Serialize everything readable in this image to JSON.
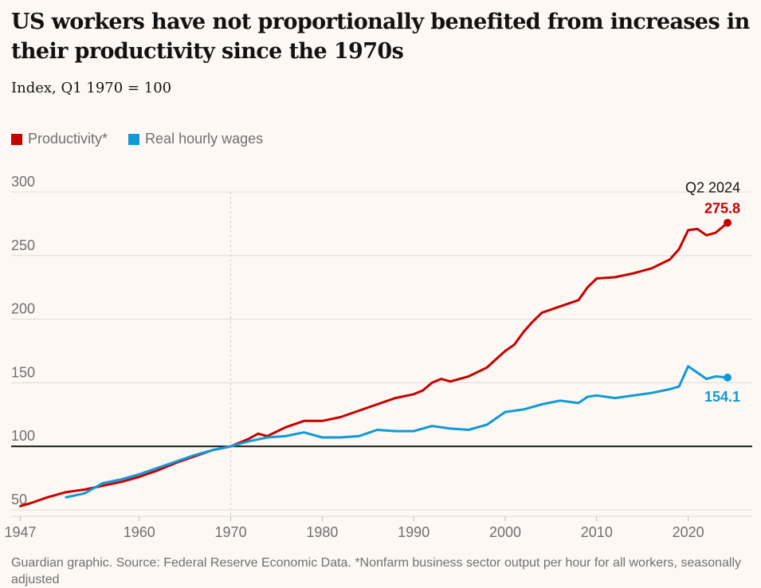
{
  "title": "US workers have not proportionally benefited from increases in their productivity since the 1970s",
  "subtitle": "Index, Q1 1970 = 100",
  "footnote": "Guardian graphic. Source: Federal Reserve Economic Data. *Nonfarm business sector output per hour for all workers, seasonally adjusted",
  "colors": {
    "productivity": "#c70000",
    "wages": "#0f9ad6",
    "baseline": "#121212",
    "grid": "#dcdcdc",
    "background": "#fdf8f3"
  },
  "chart_data": {
    "type": "line",
    "title": "US workers have not proportionally benefited from increases in their productivity since the 1970s",
    "ylabel": "Index, Q1 1970 = 100",
    "xlim": [
      1946,
      2027
    ],
    "ylim": [
      45,
      300
    ],
    "y_ticks": [
      50,
      100,
      150,
      200,
      250,
      300
    ],
    "x_ticks": [
      1947,
      1960,
      1970,
      1980,
      1990,
      2000,
      2010,
      2020
    ],
    "baseline": 100,
    "reference_x": 1970,
    "grid": "horizontal",
    "legend_position": "top-left",
    "series": [
      {
        "name": "Productivity*",
        "color": "#c70000",
        "points": [
          [
            1947,
            53
          ],
          [
            1948,
            55
          ],
          [
            1950,
            60
          ],
          [
            1952,
            64
          ],
          [
            1954,
            66
          ],
          [
            1956,
            69
          ],
          [
            1958,
            72
          ],
          [
            1960,
            76
          ],
          [
            1962,
            81
          ],
          [
            1964,
            87
          ],
          [
            1966,
            92
          ],
          [
            1968,
            97
          ],
          [
            1970,
            100
          ],
          [
            1972,
            106
          ],
          [
            1973,
            110
          ],
          [
            1974,
            108
          ],
          [
            1976,
            115
          ],
          [
            1978,
            120
          ],
          [
            1980,
            120
          ],
          [
            1982,
            123
          ],
          [
            1984,
            128
          ],
          [
            1986,
            133
          ],
          [
            1988,
            138
          ],
          [
            1990,
            141
          ],
          [
            1991,
            144
          ],
          [
            1992,
            150
          ],
          [
            1993,
            153
          ],
          [
            1994,
            151
          ],
          [
            1996,
            155
          ],
          [
            1998,
            162
          ],
          [
            2000,
            175
          ],
          [
            2001,
            180
          ],
          [
            2002,
            190
          ],
          [
            2003,
            198
          ],
          [
            2004,
            205
          ],
          [
            2006,
            210
          ],
          [
            2008,
            215
          ],
          [
            2009,
            225
          ],
          [
            2010,
            232
          ],
          [
            2012,
            233
          ],
          [
            2014,
            236
          ],
          [
            2016,
            240
          ],
          [
            2018,
            247
          ],
          [
            2019,
            255
          ],
          [
            2020,
            270
          ],
          [
            2021,
            271
          ],
          [
            2022,
            266
          ],
          [
            2023,
            268
          ],
          [
            2024.3,
            275.8
          ]
        ]
      },
      {
        "name": "Real hourly wages",
        "color": "#0f9ad6",
        "points": [
          [
            1952,
            60
          ],
          [
            1954,
            63
          ],
          [
            1956,
            71
          ],
          [
            1958,
            74
          ],
          [
            1960,
            78
          ],
          [
            1962,
            83
          ],
          [
            1964,
            88
          ],
          [
            1966,
            93
          ],
          [
            1968,
            97
          ],
          [
            1970,
            100
          ],
          [
            1972,
            104
          ],
          [
            1974,
            107
          ],
          [
            1976,
            108
          ],
          [
            1978,
            111
          ],
          [
            1980,
            107
          ],
          [
            1982,
            107
          ],
          [
            1984,
            108
          ],
          [
            1986,
            113
          ],
          [
            1988,
            112
          ],
          [
            1990,
            112
          ],
          [
            1992,
            116
          ],
          [
            1994,
            114
          ],
          [
            1996,
            113
          ],
          [
            1998,
            117
          ],
          [
            2000,
            127
          ],
          [
            2002,
            129
          ],
          [
            2004,
            133
          ],
          [
            2006,
            136
          ],
          [
            2008,
            134
          ],
          [
            2009,
            139
          ],
          [
            2010,
            140
          ],
          [
            2012,
            138
          ],
          [
            2014,
            140
          ],
          [
            2016,
            142
          ],
          [
            2018,
            145
          ],
          [
            2019,
            147
          ],
          [
            2020,
            163
          ],
          [
            2021,
            158
          ],
          [
            2022,
            153
          ],
          [
            2023,
            155
          ],
          [
            2024.3,
            154.1
          ]
        ]
      }
    ],
    "end_labels": [
      {
        "series": "Productivity*",
        "value": "275.8",
        "date": "Q2 2024"
      },
      {
        "series": "Real hourly wages",
        "value": "154.1"
      }
    ]
  }
}
